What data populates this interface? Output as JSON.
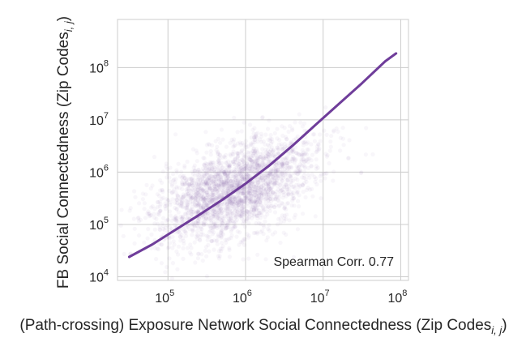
{
  "chart_data": {
    "type": "scatter",
    "title": "",
    "xlabel": "(Path-crossing) Exposure Network Social Connectedness (Zip Codes",
    "xlabel_sub": "i, j",
    "xlabel_close": ")",
    "ylabel": "FB Social Connectedness (Zip Codes",
    "ylabel_sub": "i, j",
    "ylabel_close": ")",
    "xscale": "log",
    "yscale": "log",
    "xlim_exp": [
      4.35,
      8.1
    ],
    "ylim_exp": [
      3.93,
      8.92
    ],
    "x_ticks": [
      {
        "base": "10",
        "exp": "5",
        "value_exp": 5
      },
      {
        "base": "10",
        "exp": "6",
        "value_exp": 6
      },
      {
        "base": "10",
        "exp": "7",
        "value_exp": 7
      },
      {
        "base": "10",
        "exp": "8",
        "value_exp": 8
      }
    ],
    "y_ticks": [
      {
        "base": "10",
        "exp": "4",
        "value_exp": 4
      },
      {
        "base": "10",
        "exp": "5",
        "value_exp": 5
      },
      {
        "base": "10",
        "exp": "6",
        "value_exp": 6
      },
      {
        "base": "10",
        "exp": "7",
        "value_exp": 7
      },
      {
        "base": "10",
        "exp": "8",
        "value_exp": 8
      }
    ],
    "grid": true,
    "annotation": "Spearman Corr. 0.77",
    "annotation_position": "bottom-right",
    "scatter_color": "#7d4fa5",
    "scatter_cloud": {
      "center_log10_x": 5.85,
      "center_log10_y": 5.65,
      "spread_along": 0.62,
      "spread_across": 0.36,
      "point_count": 2600
    },
    "fit_line": {
      "color": "#6f3d9a",
      "points_log10": [
        [
          4.5,
          4.38
        ],
        [
          4.8,
          4.62
        ],
        [
          5.1,
          4.9
        ],
        [
          5.4,
          5.18
        ],
        [
          5.7,
          5.47
        ],
        [
          6.0,
          5.78
        ],
        [
          6.3,
          6.12
        ],
        [
          6.6,
          6.5
        ],
        [
          6.9,
          6.9
        ],
        [
          7.2,
          7.3
        ],
        [
          7.5,
          7.7
        ],
        [
          7.8,
          8.12
        ],
        [
          7.94,
          8.27
        ]
      ]
    }
  }
}
